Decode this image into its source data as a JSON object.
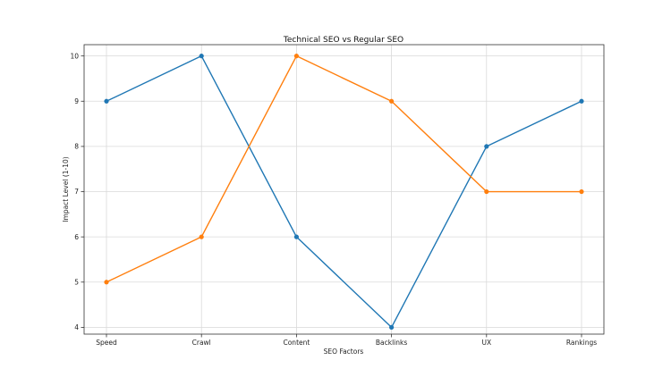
{
  "colors": {
    "background": "#ffffff",
    "grid": "#d9d9d9",
    "axis": "#333333",
    "series_1": "#1f77b4",
    "series_2": "#ff7f0e"
  },
  "chart_data": {
    "type": "line",
    "title": "Technical SEO vs Regular SEO",
    "xlabel": "SEO Factors",
    "ylabel": "Impact Level (1-10)",
    "categories": [
      "Speed",
      "Crawl",
      "Content",
      "Backlinks",
      "UX",
      "Rankings"
    ],
    "ylim": [
      3.85,
      10.25
    ],
    "yticks": [
      4,
      5,
      6,
      7,
      8,
      9,
      10
    ],
    "grid": true,
    "series": [
      {
        "values": [
          9,
          10,
          6,
          4,
          8,
          9
        ],
        "color": "#1f77b4",
        "marker": "circle"
      },
      {
        "values": [
          5,
          6,
          10,
          9,
          7,
          7
        ],
        "color": "#ff7f0e",
        "marker": "circle"
      }
    ]
  }
}
